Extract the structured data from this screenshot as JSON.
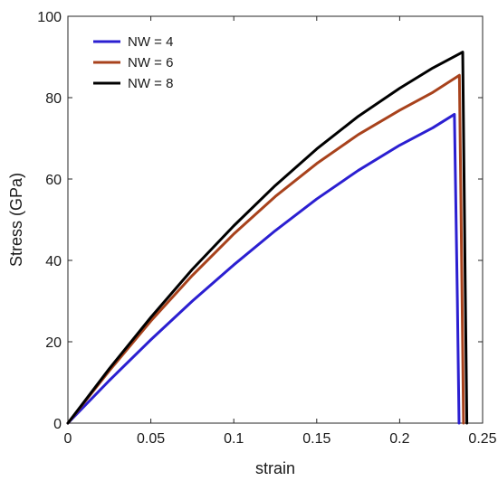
{
  "chart_data": {
    "type": "line",
    "title": "",
    "xlabel": "strain",
    "ylabel": "Stress (GPa)",
    "xlim": [
      0,
      0.25
    ],
    "ylim": [
      0,
      100
    ],
    "xticks": [
      0,
      0.05,
      0.1,
      0.15,
      0.2,
      0.25
    ],
    "xtick_labels": [
      "0",
      "0.05",
      "0.1",
      "0.15",
      "0.2",
      "0.25"
    ],
    "yticks": [
      0,
      20,
      40,
      60,
      80,
      100
    ],
    "ytick_labels": [
      "0",
      "20",
      "40",
      "60",
      "80",
      "100"
    ],
    "grid": false,
    "legend_position": "top-left",
    "series": [
      {
        "name": "NW = 4",
        "color": "#2b1fd1",
        "x": [
          0,
          0.025,
          0.05,
          0.075,
          0.1,
          0.125,
          0.15,
          0.175,
          0.2,
          0.22,
          0.233,
          0.2348,
          0.2358
        ],
        "y": [
          0,
          10.5,
          20.5,
          30.0,
          38.9,
          47.3,
          55.1,
          62.1,
          68.3,
          72.6,
          75.9,
          30.0,
          0
        ]
      },
      {
        "name": "NW = 6",
        "color": "#a8421c",
        "x": [
          0,
          0.025,
          0.05,
          0.075,
          0.1,
          0.125,
          0.15,
          0.175,
          0.2,
          0.22,
          0.236,
          0.2375,
          0.2385
        ],
        "y": [
          0,
          12.9,
          25.1,
          36.3,
          46.5,
          55.7,
          63.8,
          70.9,
          76.9,
          81.3,
          85.5,
          35.0,
          0
        ]
      },
      {
        "name": "NW = 8",
        "color": "#000000",
        "x": [
          0,
          0.025,
          0.05,
          0.075,
          0.1,
          0.125,
          0.15,
          0.175,
          0.2,
          0.22,
          0.238,
          0.2395,
          0.2405
        ],
        "y": [
          0,
          13.4,
          26.0,
          37.8,
          48.5,
          58.4,
          67.4,
          75.4,
          82.3,
          87.3,
          91.2,
          35.0,
          0
        ]
      }
    ]
  }
}
